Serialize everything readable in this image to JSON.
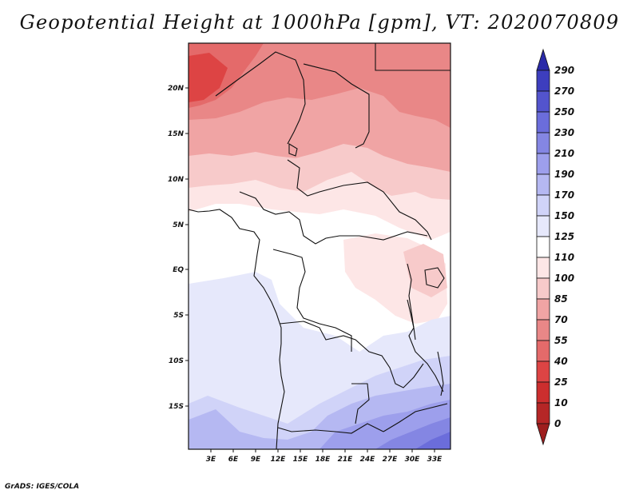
{
  "title": "Geopotential Height at 1000hPa [gpm], VT: 2020070809",
  "credit": "GrADS: IGES/COLA",
  "map": {
    "lat_labels": [
      "20N",
      "15N",
      "10N",
      "5N",
      "EQ",
      "5S",
      "10S",
      "15S"
    ],
    "lon_labels": [
      "3E",
      "6E",
      "9E",
      "12E",
      "15E",
      "18E",
      "21E",
      "24E",
      "27E",
      "30E",
      "33E"
    ]
  },
  "colorbar": {
    "labels": [
      "290",
      "270",
      "250",
      "230",
      "210",
      "190",
      "170",
      "150",
      "125",
      "110",
      "100",
      "85",
      "70",
      "55",
      "40",
      "25",
      "10",
      "0"
    ],
    "colors": {
      "lt0": "#9e1e1e",
      "0_10": "#b52626",
      "10_25": "#cc2e2e",
      "25_40": "#dd4444",
      "40_55": "#e46a6a",
      "55_70": "#e98787",
      "70_85": "#f0a4a4",
      "85_100": "#f7caca",
      "100_110": "#fde6e6",
      "110_125": "#ffffff",
      "125_150": "#e6e8fb",
      "150_170": "#d0d3f8",
      "170_190": "#b5b8f2",
      "190_210": "#9d9fec",
      "210_230": "#8486e3",
      "230_250": "#6b6ddb",
      "250_270": "#5354cd",
      "270_290": "#3d3ebe",
      "gt290": "#2a2aa8"
    }
  }
}
